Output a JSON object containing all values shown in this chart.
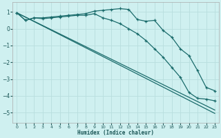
{
  "xlabel": "Humidex (Indice chaleur)",
  "bg_color": "#cff0f0",
  "grid_color": "#b8dede",
  "line_color": "#1a6b6b",
  "xlim": [
    -0.5,
    23.5
  ],
  "ylim": [
    -5.6,
    1.6
  ],
  "yticks": [
    1,
    0,
    -1,
    -2,
    -3,
    -4,
    -5
  ],
  "xticks": [
    0,
    1,
    2,
    3,
    4,
    5,
    6,
    7,
    8,
    9,
    10,
    11,
    12,
    13,
    14,
    15,
    16,
    17,
    18,
    19,
    20,
    21,
    22,
    23
  ],
  "line1_x": [
    0,
    1,
    2,
    3,
    4,
    5,
    6,
    7,
    8,
    9,
    10,
    11,
    12,
    13,
    14,
    15,
    16,
    17,
    18,
    19,
    20,
    21,
    22,
    23
  ],
  "line1_y": [
    0.95,
    0.5,
    0.65,
    0.65,
    0.7,
    0.75,
    0.8,
    0.85,
    0.9,
    1.05,
    1.1,
    1.15,
    1.2,
    1.15,
    0.55,
    0.45,
    0.5,
    -0.1,
    -0.5,
    -1.2,
    -1.6,
    -2.5,
    -3.5,
    -3.7
  ],
  "line2_x": [
    0,
    1,
    2,
    3,
    4,
    5,
    6,
    7,
    8,
    9,
    10,
    11,
    12,
    13,
    14,
    15,
    16,
    17,
    18,
    19,
    20,
    21,
    22,
    23
  ],
  "line2_y": [
    0.95,
    0.5,
    0.65,
    0.6,
    0.65,
    0.7,
    0.75,
    0.8,
    0.8,
    0.9,
    0.65,
    0.5,
    0.3,
    0.0,
    -0.3,
    -0.7,
    -1.2,
    -1.7,
    -2.3,
    -2.9,
    -3.8,
    -4.15,
    -4.2,
    -4.3
  ],
  "line3_x": [
    0,
    23
  ],
  "line3_y": [
    0.95,
    -4.85
  ],
  "line4_x": [
    0,
    23
  ],
  "line4_y": [
    0.95,
    -5.05
  ]
}
